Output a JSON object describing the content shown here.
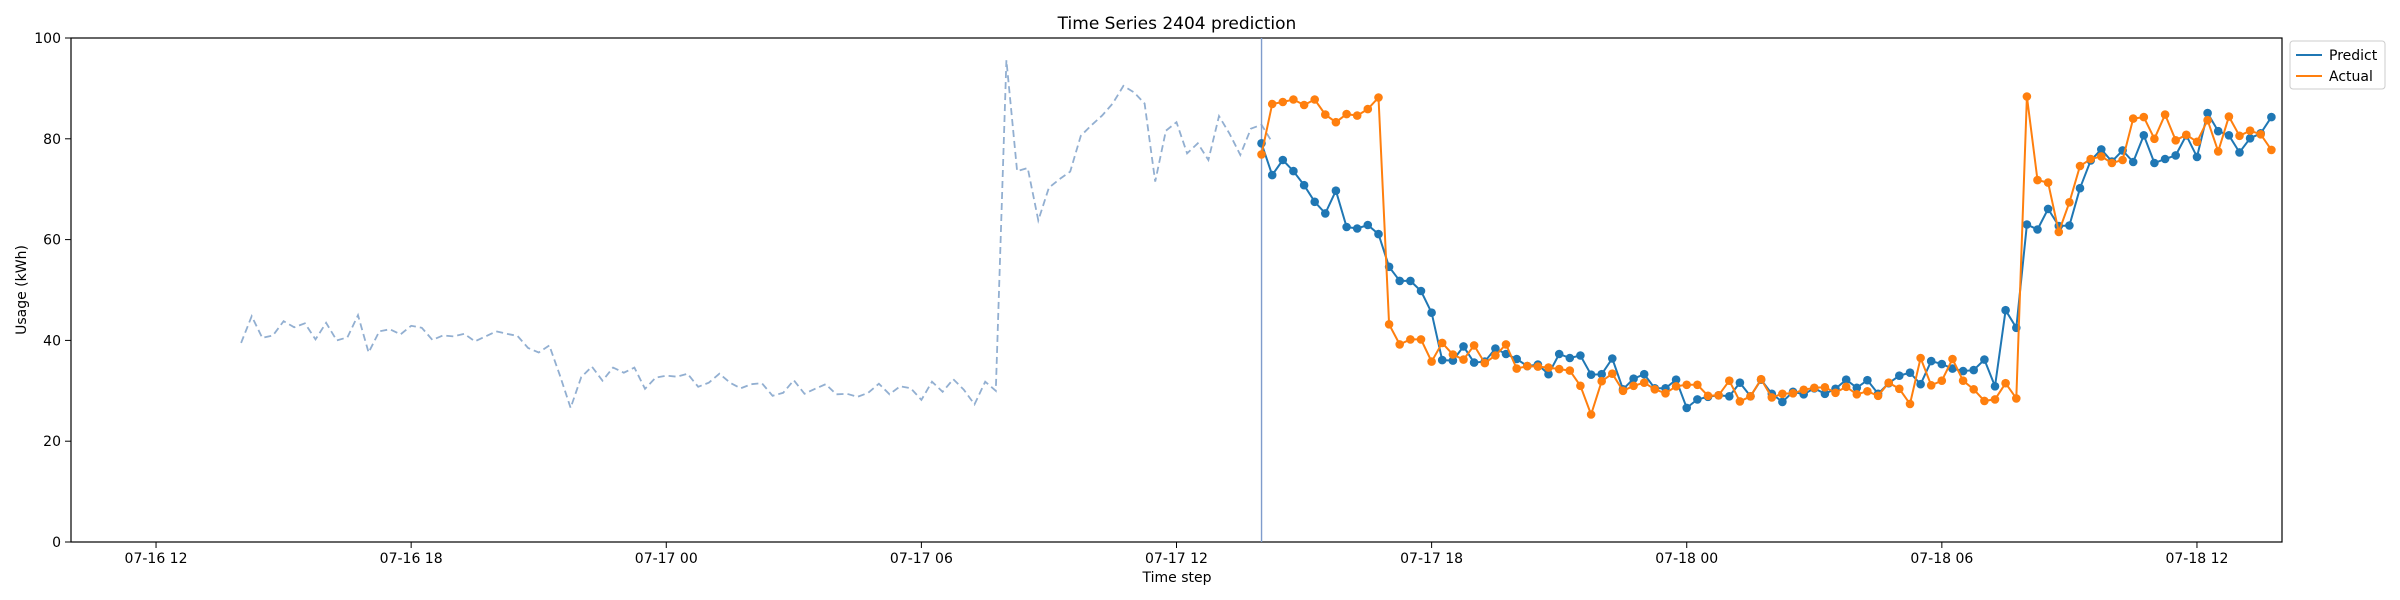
{
  "chart_data": {
    "type": "line",
    "title": "Time Series 2404 prediction",
    "xlabel": "Time step",
    "ylabel": "Usage (kWh)",
    "ylim": [
      0,
      100
    ],
    "xlim_hours": [
      -2.0,
      50.0
    ],
    "x_ticks": [
      {
        "hour": 0,
        "label": "07-16 12"
      },
      {
        "hour": 6,
        "label": "07-16 18"
      },
      {
        "hour": 12,
        "label": "07-17 00"
      },
      {
        "hour": 18,
        "label": "07-17 06"
      },
      {
        "hour": 24,
        "label": "07-17 12"
      },
      {
        "hour": 30,
        "label": "07-17 18"
      },
      {
        "hour": 36,
        "label": "07-18 00"
      },
      {
        "hour": 42,
        "label": "07-18 06"
      },
      {
        "hour": 48,
        "label": "07-18 12"
      }
    ],
    "y_ticks": [
      0,
      20,
      40,
      60,
      80,
      100
    ],
    "grid": false,
    "legend_position": "top-right",
    "forecast_start_hour": 26.0,
    "colors": {
      "history": "#92afd1",
      "predict": "#1f77b4",
      "actual": "#ff7f0e",
      "divider": "#7f9ccc"
    },
    "history": {
      "start_hour": 2.0,
      "step_hours": 0.25,
      "values": [
        39.5,
        44.8,
        40.5,
        41.0,
        43.8,
        42.6,
        43.4,
        40.2,
        43.5,
        40.0,
        40.6,
        45.0,
        37.6,
        41.8,
        42.2,
        41.2,
        42.9,
        42.5,
        40.1,
        41.0,
        40.8,
        41.3,
        39.8,
        40.8,
        41.8,
        41.3,
        40.9,
        38.5,
        37.6,
        39.0,
        33.0,
        26.6,
        32.7,
        34.8,
        32.0,
        34.6,
        33.6,
        34.6,
        30.4,
        32.6,
        33.0,
        32.8,
        33.4,
        30.8,
        31.6,
        33.4,
        31.6,
        30.5,
        31.3,
        31.5,
        29.0,
        29.6,
        32.1,
        29.4,
        30.4,
        31.3,
        29.3,
        29.4,
        28.8,
        29.6,
        31.4,
        29.3,
        30.9,
        30.5,
        28.2,
        31.8,
        29.8,
        32.3,
        30.2,
        27.3,
        31.8,
        30.0,
        95.6,
        73.6,
        74.2,
        63.8,
        70.3,
        72.0,
        73.5,
        80.6,
        82.7,
        84.6,
        87.0,
        90.5,
        89.2,
        87.0,
        71.5,
        81.6,
        83.3,
        77.1,
        79.1,
        75.8,
        84.5,
        81.0,
        76.8,
        82.0,
        82.8,
        79.3
      ]
    },
    "series": [
      {
        "name": "Predict",
        "start_hour": 26.0,
        "step_hours": 0.25,
        "values": [
          79.1,
          72.8,
          75.8,
          73.6,
          70.8,
          67.5,
          65.2,
          69.7,
          62.5,
          62.2,
          62.9,
          61.1,
          54.6,
          51.8,
          51.8,
          49.8,
          45.5,
          36.1,
          36.0,
          38.8,
          35.6,
          35.8,
          38.4,
          37.3,
          36.3,
          34.9,
          35.2,
          33.3,
          37.3,
          36.5,
          37.0,
          33.2,
          33.3,
          36.4,
          30.3,
          32.4,
          33.3,
          30.5,
          30.5,
          32.2,
          26.6,
          28.3,
          28.8,
          29.1,
          28.9,
          31.6,
          28.9,
          32.2,
          29.4,
          27.8,
          29.8,
          29.3,
          30.5,
          29.4,
          30.4,
          32.2,
          30.6,
          32.1,
          29.4,
          31.5,
          33.0,
          33.6,
          31.3,
          35.9,
          35.3,
          34.4,
          33.9,
          34.1,
          36.2,
          30.9,
          46.0,
          42.5,
          63.0,
          62.0,
          66.1,
          62.7,
          62.8,
          70.2,
          75.7,
          77.9,
          75.5,
          77.7,
          75.4,
          80.7,
          75.2,
          76.0,
          76.7,
          80.7,
          76.4,
          85.1,
          81.5,
          80.7,
          77.3,
          80.1,
          81.1,
          84.3
        ]
      },
      {
        "name": "Actual",
        "start_hour": 26.0,
        "step_hours": 0.25,
        "values": [
          76.9,
          86.9,
          87.3,
          87.8,
          86.7,
          87.8,
          84.8,
          83.3,
          84.9,
          84.6,
          85.9,
          88.2,
          43.2,
          39.2,
          40.2,
          40.2,
          35.8,
          39.5,
          37.2,
          36.2,
          39.0,
          35.5,
          37.0,
          39.2,
          34.4,
          34.9,
          34.8,
          34.6,
          34.3,
          34.0,
          31.0,
          25.3,
          31.9,
          33.4,
          30.0,
          31.0,
          31.6,
          30.3,
          29.5,
          30.9,
          31.2,
          31.2,
          29.0,
          29.1,
          32.0,
          27.9,
          28.9,
          32.3,
          28.7,
          29.4,
          29.5,
          30.2,
          30.6,
          30.7,
          29.6,
          30.8,
          29.3,
          29.9,
          29.0,
          31.6,
          30.4,
          27.4,
          36.5,
          31.1,
          32.0,
          36.3,
          32.0,
          30.3,
          28.0,
          28.3,
          31.5,
          28.5,
          88.4,
          71.8,
          71.3,
          61.5,
          67.4,
          74.6,
          76.0,
          76.5,
          75.2,
          75.8,
          84.0,
          84.3,
          80.0,
          84.8,
          79.7,
          80.8,
          79.4,
          83.7,
          77.5,
          84.4,
          80.6,
          81.6,
          80.9,
          77.8
        ]
      }
    ]
  }
}
